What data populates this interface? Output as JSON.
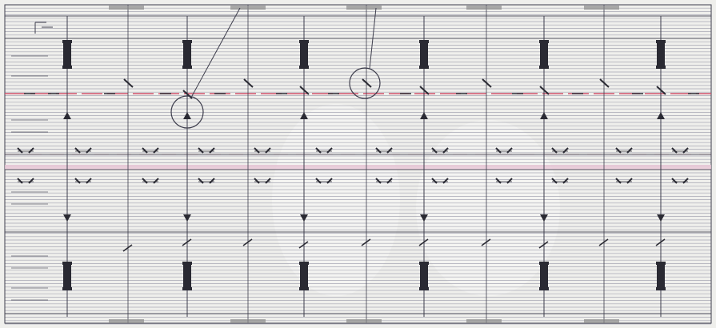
{
  "diagram": {
    "background": "#efefec",
    "hatch_color": "#8f8fa0",
    "line_color": "#3d3d4c",
    "marker_color": "#2a2a33",
    "red_line_color": "#d0506a",
    "pink_band_color": "#e9c6d6",
    "label_bar_color": "#8a8a8a",
    "highlight_circles": 2,
    "callout_leaders": 2,
    "unit_count": 6
  }
}
